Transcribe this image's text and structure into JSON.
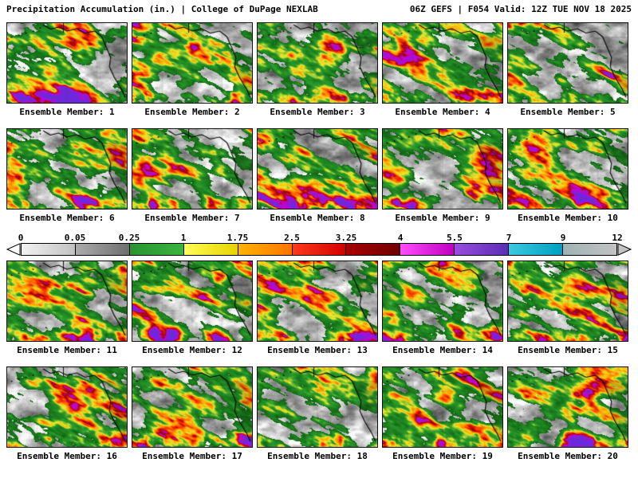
{
  "header": {
    "left_title": "Precipitation Accumulation (in.) | College of DuPage NEXLAB",
    "right_title": "06Z GEFS | F054 Valid: 12Z TUE NOV 18 2025"
  },
  "panel_label_prefix": "Ensemble Member:",
  "members": [
    1,
    2,
    3,
    4,
    5,
    6,
    7,
    8,
    9,
    10,
    11,
    12,
    13,
    14,
    15,
    16,
    17,
    18,
    19,
    20
  ],
  "rows": [
    [
      0,
      1,
      2,
      3,
      4
    ],
    [
      5,
      6,
      7,
      8,
      9
    ],
    [
      10,
      11,
      12,
      13,
      14
    ],
    [
      15,
      16,
      17,
      18,
      19
    ]
  ],
  "colorbar": {
    "ticks": [
      "0",
      "0.05",
      "0.25",
      "1",
      "1.75",
      "2.5",
      "3.25",
      "4",
      "5.5",
      "7",
      "9",
      "12"
    ],
    "segments": [
      [
        "#f2f2f2",
        "#c2c2c2"
      ],
      [
        "#ababab",
        "#6f6f6f"
      ],
      [
        "#2a9430",
        "#3ab440"
      ],
      [
        "#ffff55",
        "#e6d200"
      ],
      [
        "#ffb300",
        "#ff7400"
      ],
      [
        "#ff3a1e",
        "#d40000"
      ],
      [
        "#a80000",
        "#700000"
      ],
      [
        "#ff4dff",
        "#bf00bf"
      ],
      [
        "#9a4de0",
        "#5a2db4"
      ],
      [
        "#3cc8e0",
        "#00a0c0"
      ],
      [
        "#9fb3b3",
        "#c2c2c2"
      ]
    ],
    "left_arrow_color": "#ffffff",
    "right_arrow_color": "#c2c2c2"
  },
  "map": {
    "gray_threshold": 0.42,
    "palette": [
      {
        "p": 0.42,
        "rgb": [
          16,
          102,
          18
        ]
      },
      {
        "p": 0.58,
        "rgb": [
          42,
          156,
          44
        ]
      },
      {
        "p": 0.66,
        "rgb": [
          235,
          235,
          45
        ]
      },
      {
        "p": 0.73,
        "rgb": [
          255,
          160,
          0
        ]
      },
      {
        "p": 0.79,
        "rgb": [
          255,
          45,
          0
        ]
      },
      {
        "p": 0.845,
        "rgb": [
          150,
          0,
          0
        ]
      },
      {
        "p": 0.89,
        "rgb": [
          205,
          0,
          205
        ]
      },
      {
        "p": 1.01,
        "rgb": [
          110,
          40,
          220
        ]
      }
    ],
    "coast_alaska": [
      [
        0.3,
        0.02
      ],
      [
        0.36,
        0.075
      ],
      [
        0.43,
        0.05
      ],
      [
        0.5,
        0.1
      ],
      [
        0.58,
        0.07
      ],
      [
        0.65,
        0.125
      ],
      [
        0.73,
        0.1
      ],
      [
        0.79,
        0.17
      ]
    ],
    "coast_west": [
      [
        0.79,
        0.17
      ],
      [
        0.825,
        0.29
      ],
      [
        0.865,
        0.43
      ],
      [
        0.855,
        0.55
      ],
      [
        0.895,
        0.68
      ],
      [
        0.955,
        0.83
      ],
      [
        0.985,
        0.93
      ]
    ],
    "dateline": [
      [
        0.47,
        0.0
      ],
      [
        0.47,
        0.12
      ]
    ],
    "aleutians": [
      [
        0.03,
        0.17
      ],
      [
        0.09,
        0.145
      ],
      [
        0.15,
        0.12
      ],
      [
        0.21,
        0.095
      ],
      [
        0.27,
        0.055
      ]
    ]
  }
}
